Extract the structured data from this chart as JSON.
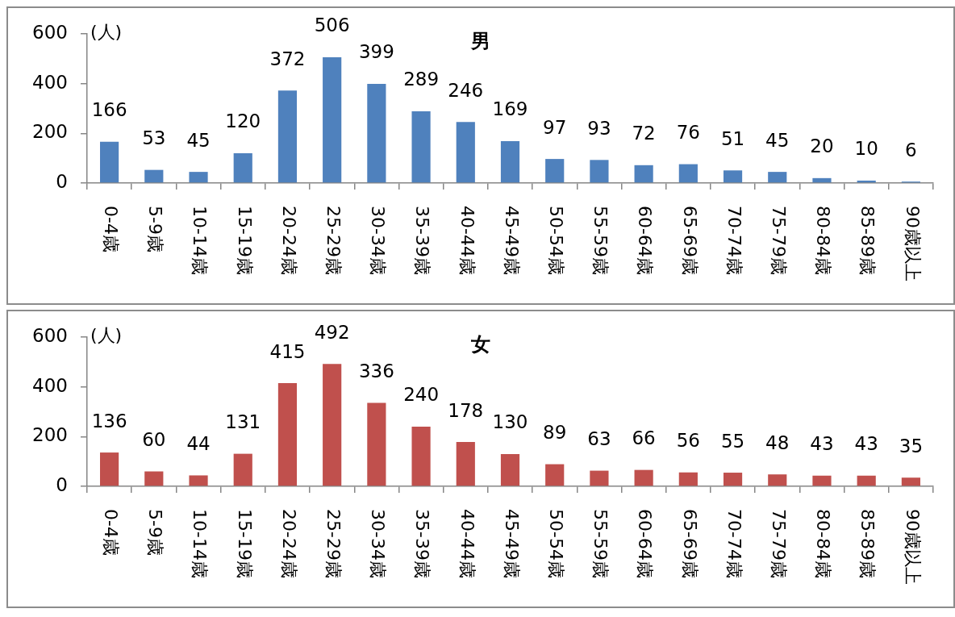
{
  "chart_data": [
    {
      "type": "bar",
      "title": "男",
      "ylabel": "(人)",
      "categories": [
        "0-4歳",
        "5-9歳",
        "10-14歳",
        "15-19歳",
        "20-24歳",
        "25-29歳",
        "30-34歳",
        "35-39歳",
        "40-44歳",
        "45-49歳",
        "50-54歳",
        "55-59歳",
        "60-64歳",
        "65-69歳",
        "70-74歳",
        "75-79歳",
        "80-84歳",
        "85-89歳",
        "90歳以上"
      ],
      "values": [
        166,
        53,
        45,
        120,
        372,
        506,
        399,
        289,
        246,
        169,
        97,
        93,
        72,
        76,
        51,
        45,
        20,
        10,
        6
      ],
      "color": "#4f81bd",
      "ylim": [
        0,
        600
      ],
      "yticks": [
        0,
        200,
        400,
        600
      ],
      "data_labels": true
    },
    {
      "type": "bar",
      "title": "女",
      "ylabel": "(人)",
      "categories": [
        "0-4歳",
        "5-9歳",
        "10-14歳",
        "15-19歳",
        "20-24歳",
        "25-29歳",
        "30-34歳",
        "35-39歳",
        "40-44歳",
        "45-49歳",
        "50-54歳",
        "55-59歳",
        "60-64歳",
        "65-69歳",
        "70-74歳",
        "75-79歳",
        "80-84歳",
        "85-89歳",
        "90歳以上"
      ],
      "values": [
        136,
        60,
        44,
        131,
        415,
        492,
        336,
        240,
        178,
        130,
        89,
        63,
        66,
        56,
        55,
        48,
        43,
        43,
        35
      ],
      "color": "#c0504d",
      "ylim": [
        0,
        600
      ],
      "yticks": [
        0,
        200,
        400,
        600
      ],
      "data_labels": true
    }
  ]
}
